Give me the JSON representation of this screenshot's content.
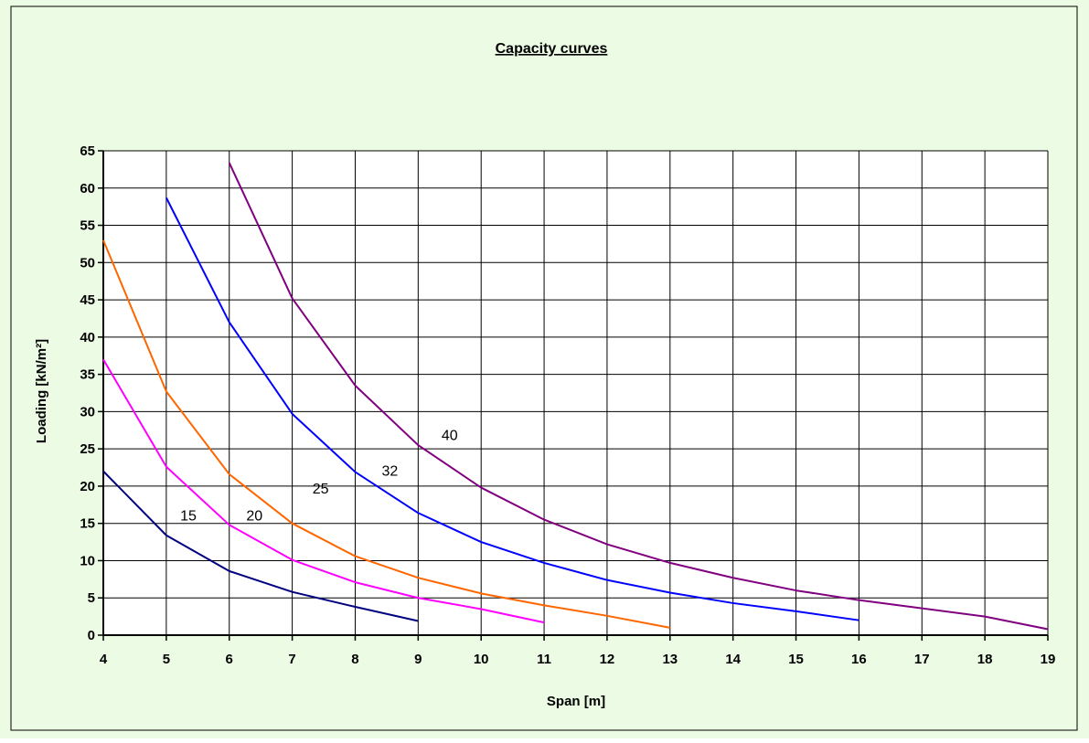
{
  "chart_data": {
    "type": "line",
    "title": "Capacity curves",
    "xlabel": "Span [m]",
    "ylabel": "Loading [kN/m²]",
    "xlim": [
      4,
      19
    ],
    "ylim": [
      0,
      65
    ],
    "x_ticks": [
      "4",
      "5",
      "6",
      "7",
      "8",
      "9",
      "10",
      "11",
      "12",
      "13",
      "14",
      "15",
      "16",
      "17",
      "18",
      "19"
    ],
    "y_ticks": [
      "0",
      "5",
      "10",
      "15",
      "20",
      "25",
      "30",
      "35",
      "40",
      "45",
      "50",
      "55",
      "60",
      "65"
    ],
    "grid": true,
    "colors": {
      "background": "#ecfbe4",
      "plot_background": "#ffffff",
      "grid": "#000000",
      "series_15": "#000080",
      "series_20": "#ff00ff",
      "series_25": "#ff6600",
      "series_32": "#0000ff",
      "series_40": "#800080"
    },
    "series": [
      {
        "name": "15",
        "color": "#000080",
        "x": [
          4,
          5,
          6,
          7,
          8,
          9
        ],
        "y": [
          22.0,
          13.4,
          8.6,
          5.8,
          3.8,
          1.9
        ],
        "label_at": [
          5.35,
          15.4
        ]
      },
      {
        "name": "20",
        "color": "#ff00ff",
        "x": [
          4,
          5,
          6,
          7,
          8,
          9,
          10,
          11
        ],
        "y": [
          37.0,
          22.6,
          14.8,
          10.1,
          7.1,
          5.0,
          3.5,
          1.7
        ],
        "label_at": [
          6.4,
          15.4
        ]
      },
      {
        "name": "25",
        "color": "#ff6600",
        "x": [
          4,
          5,
          6,
          7,
          8,
          9,
          10,
          11,
          12,
          13
        ],
        "y": [
          53.0,
          32.7,
          21.6,
          15.0,
          10.6,
          7.7,
          5.6,
          4.0,
          2.6,
          1.0
        ],
        "label_at": [
          7.45,
          19.0
        ]
      },
      {
        "name": "32",
        "color": "#0000ff",
        "x": [
          5,
          6,
          7,
          8,
          9,
          10,
          11,
          12,
          13,
          14,
          15,
          16
        ],
        "y": [
          58.7,
          42.0,
          29.7,
          21.9,
          16.4,
          12.5,
          9.7,
          7.4,
          5.7,
          4.3,
          3.2,
          2.0
        ],
        "label_at": [
          8.55,
          21.4
        ]
      },
      {
        "name": "40",
        "color": "#800080",
        "x": [
          6,
          7,
          8,
          9,
          10,
          11,
          12,
          13,
          14,
          15,
          16,
          17,
          18,
          19
        ],
        "y": [
          63.4,
          45.2,
          33.5,
          25.5,
          19.8,
          15.5,
          12.2,
          9.7,
          7.7,
          6.0,
          4.7,
          3.6,
          2.5,
          0.8
        ],
        "label_at": [
          9.5,
          26.2
        ]
      }
    ]
  }
}
